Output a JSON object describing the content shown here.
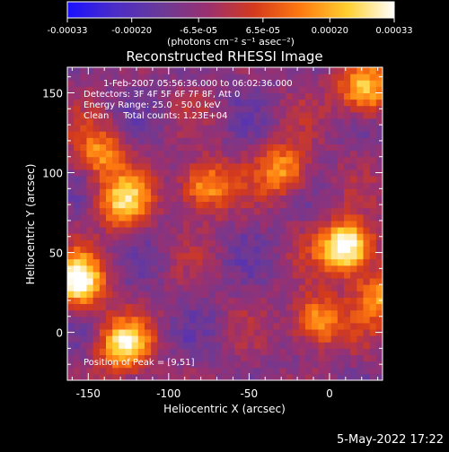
{
  "colorbar": {
    "ticks": [
      "-0.00033",
      "-0.00020",
      "-6.5e-05",
      "6.5e-05",
      "0.00020",
      "0.00033"
    ],
    "tick_values": [
      -0.00033,
      -0.0002,
      -6.5e-05,
      6.5e-05,
      0.0002,
      0.00033
    ],
    "range": [
      -0.00033,
      0.00033
    ],
    "unit_label": "(photons cm⁻² s⁻¹ asec⁻²)",
    "stops": [
      "#1a10ff",
      "#4a2cc8",
      "#6a3a98",
      "#9a3070",
      "#d43a1c",
      "#ff7a10",
      "#ffd030",
      "#ffffff"
    ]
  },
  "plot": {
    "title": "Reconstructed RHESSI Image",
    "annotation_lines": [
      "1-Feb-2007 05:56:36.000 to 06:02:36.000",
      "Detectors: 3F 4F 5F 6F 7F 8F, Att 0",
      "Energy Range: 25.0 - 50.0 keV",
      "Clean     Total counts: 1.23E+04"
    ],
    "peak_text": "Position of Peak = [9,51]"
  },
  "footer": {
    "timestamp": "5-May-2022 17:22"
  },
  "chart_data": {
    "type": "heatmap",
    "title": "Reconstructed RHESSI Image",
    "xlabel": "Heliocentric X (arcsec)",
    "ylabel": "Heliocentric Y (arcsec)",
    "xlim": [
      -163,
      33
    ],
    "ylim": [
      -30,
      166
    ],
    "x_ticks": [
      -150,
      -100,
      -50,
      0
    ],
    "y_ticks": [
      0,
      50,
      100,
      150
    ],
    "colorbar_range": [
      -0.00033,
      0.00033
    ],
    "peak_position": [
      9,
      51
    ],
    "bright_regions": [
      {
        "x": 9,
        "y": 51,
        "level": 1.0
      },
      {
        "x": -158,
        "y": 30,
        "level": 0.85
      },
      {
        "x": 20,
        "y": 150,
        "level": 0.7
      },
      {
        "x": -130,
        "y": 80,
        "level": 0.65
      },
      {
        "x": -130,
        "y": -10,
        "level": 0.7
      },
      {
        "x": -80,
        "y": 90,
        "level": 0.6
      },
      {
        "x": -30,
        "y": 100,
        "level": 0.55
      },
      {
        "x": -10,
        "y": 5,
        "level": 0.6
      },
      {
        "x": 30,
        "y": 20,
        "level": 0.5
      },
      {
        "x": -145,
        "y": 110,
        "level": 0.5
      }
    ]
  }
}
